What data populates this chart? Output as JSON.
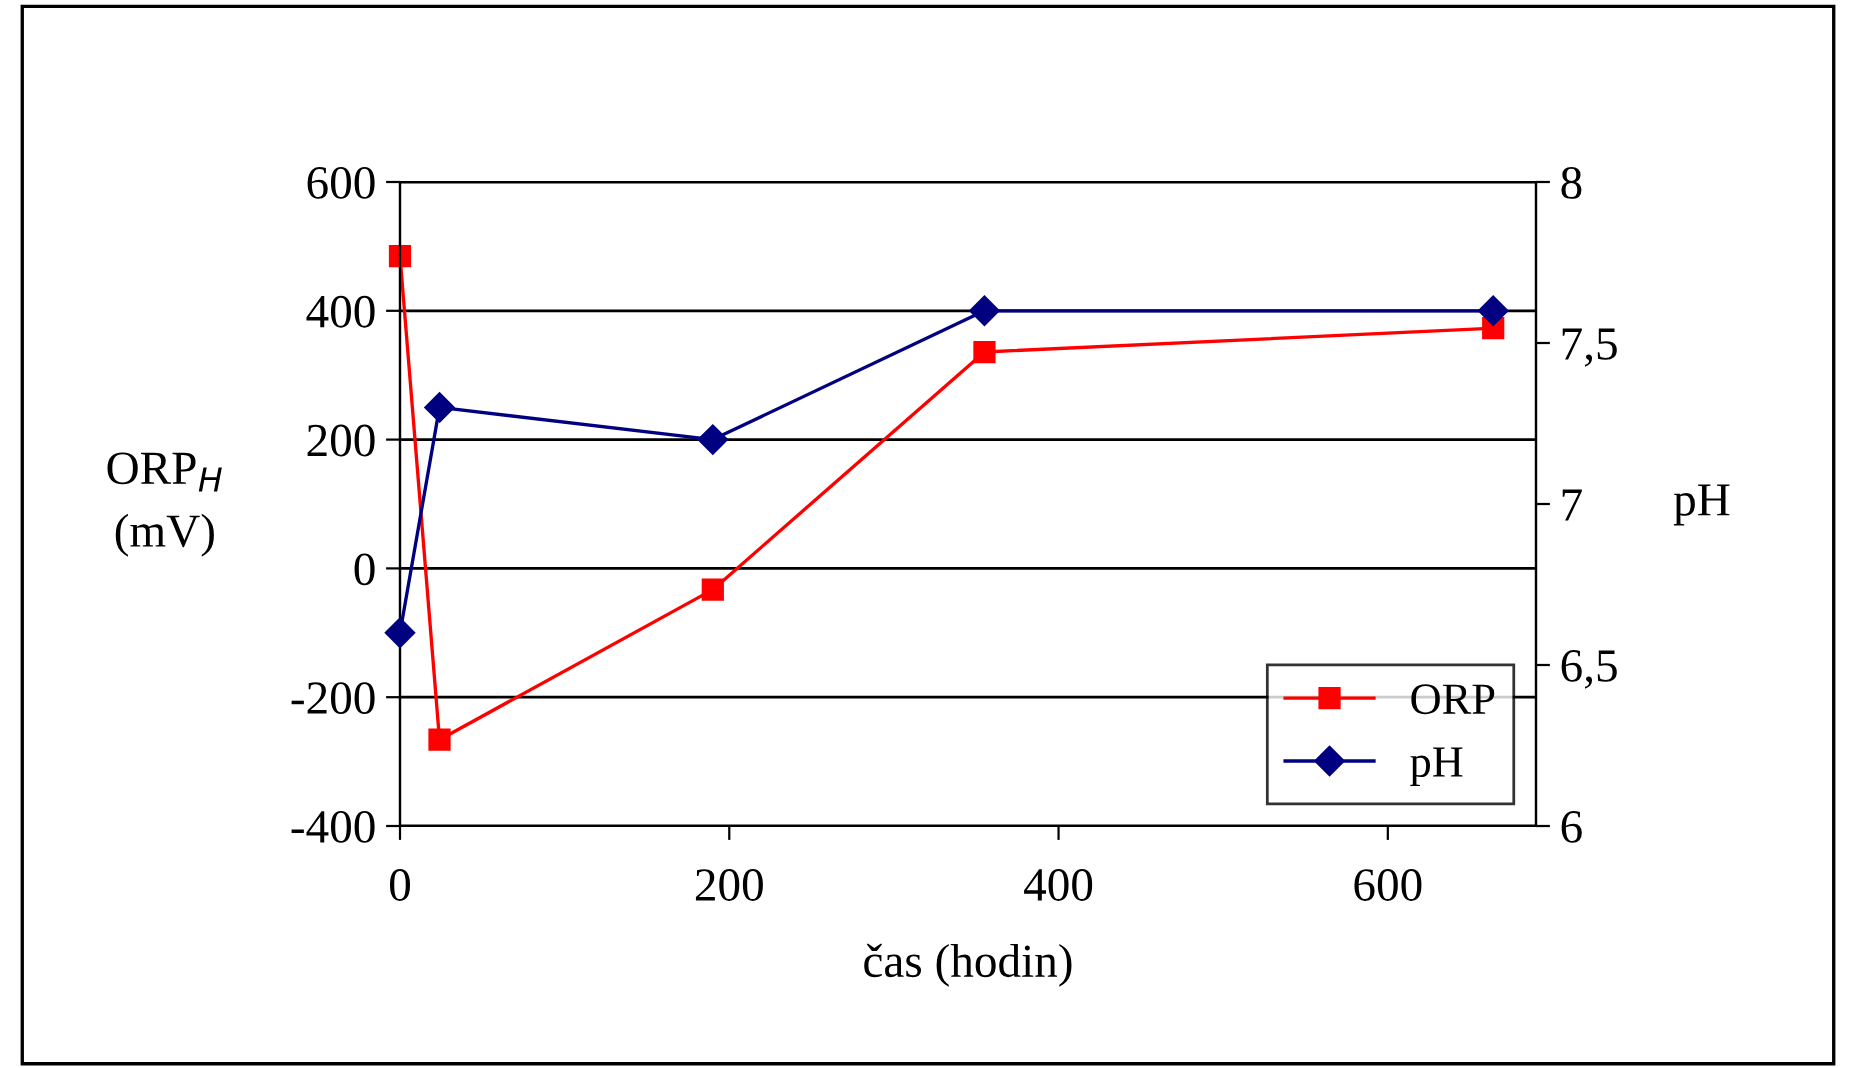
{
  "chart_data": {
    "type": "line",
    "xlabel": "čas (hodin)",
    "ylabel": "ORP$_{H}$\n(mV)",
    "y2label": "pH",
    "xlim": [
      0,
      690
    ],
    "xticks": [
      0,
      200,
      400,
      600
    ],
    "ylim": [
      -400,
      600
    ],
    "yticks": [
      -400,
      -200,
      0,
      200,
      400,
      600
    ],
    "y2lim": [
      6,
      8
    ],
    "y2ticks": [
      6,
      {
        "value": 6.5,
        "label": "6,5"
      },
      7,
      {
        "value": 7.5,
        "label": "7,5"
      },
      8
    ],
    "series": [
      {
        "name": "ORP",
        "color": "#ff0000",
        "marker": "square",
        "x": [
          0,
          24,
          190,
          355,
          664
        ],
        "values": [
          485,
          -266,
          -33,
          336,
          373
        ]
      },
      {
        "name": "pH",
        "color": "#000080",
        "marker": "diamond",
        "axis": "y2",
        "x": [
          0,
          24,
          190,
          355,
          664
        ],
        "values": [
          6.6,
          7.3,
          7.2,
          7.6,
          7.6
        ]
      }
    ],
    "grid": "y",
    "legend": "bottom right",
    "line_style": "solid"
  }
}
